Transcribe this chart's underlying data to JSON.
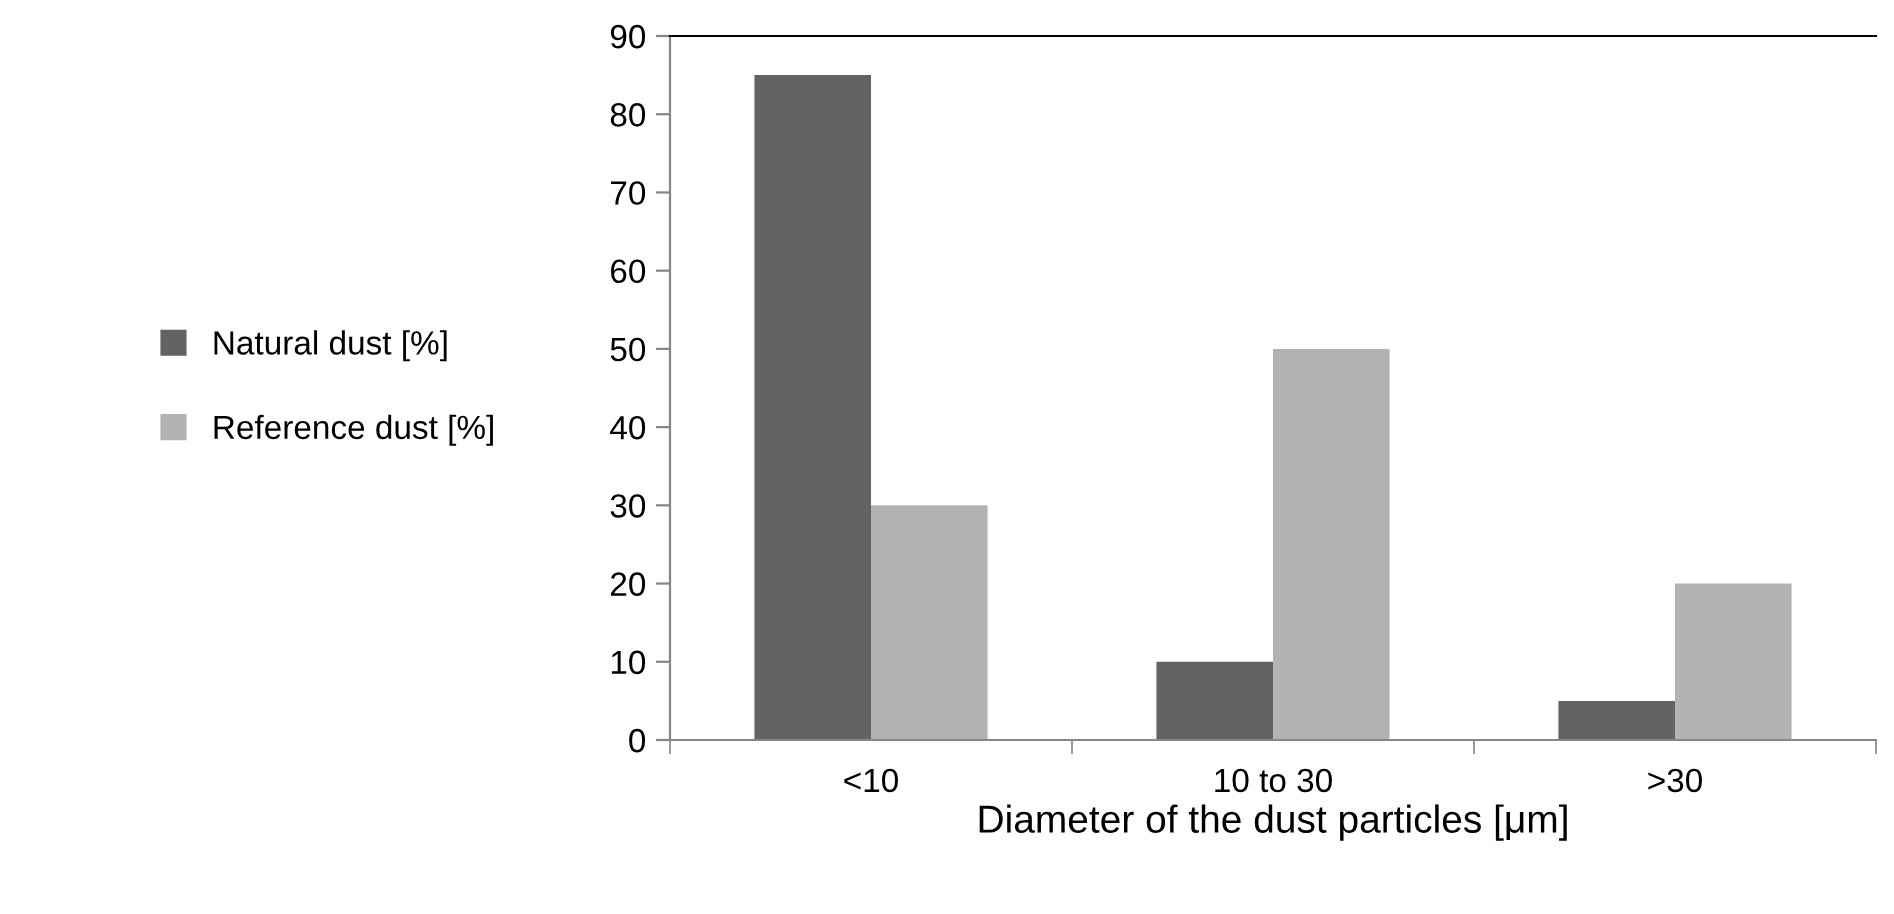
{
  "chart_data": {
    "type": "bar",
    "xlabel": "Diameter of the dust particles [μm]",
    "categories": [
      "<10",
      "10 to 30",
      ">30"
    ],
    "series": [
      {
        "name": "Natural dust [%]",
        "color": "#636363",
        "values": [
          85,
          10,
          5
        ]
      },
      {
        "name": "Reference dust [%]",
        "color": "#b3b3b3",
        "values": [
          30,
          50,
          20
        ]
      }
    ],
    "ylim": [
      0,
      90
    ],
    "yticks": [
      0,
      10,
      20,
      30,
      40,
      50,
      60,
      70,
      80,
      90
    ],
    "grid": false,
    "legend": "left"
  }
}
